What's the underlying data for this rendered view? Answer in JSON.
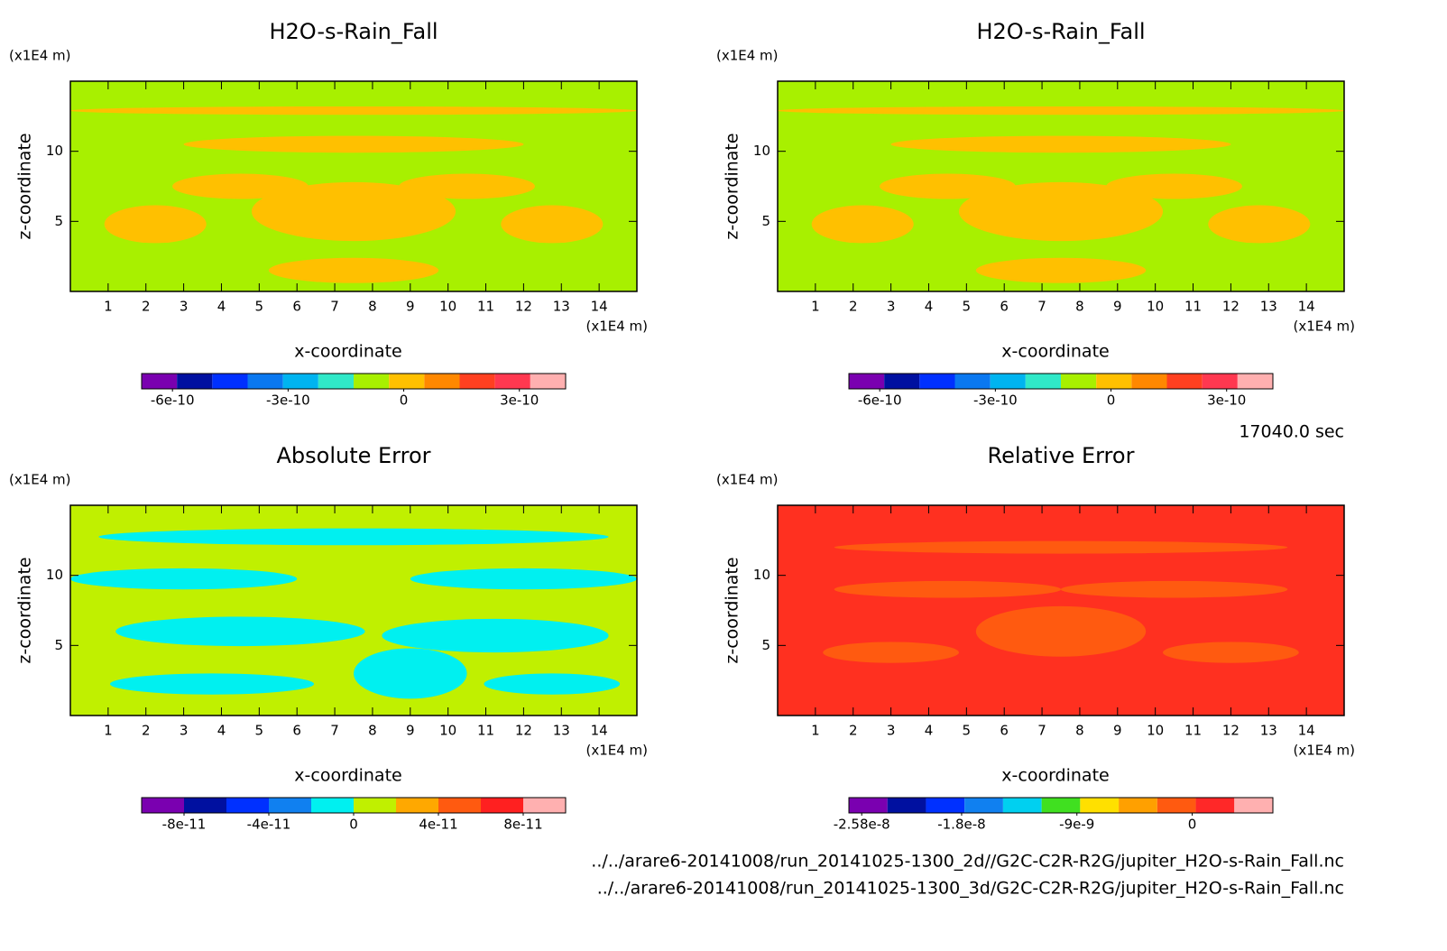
{
  "panels": [
    {
      "title": "H2O-s-Rain_Fall",
      "z_unit": "(x1E4 m)",
      "x_unit": "(x1E4 m)",
      "x_label": "x-coordinate",
      "y_label": "z-coordinate",
      "xlim": [
        0,
        15
      ],
      "ylim": [
        0,
        15
      ],
      "xticks": [
        1,
        2,
        3,
        4,
        5,
        6,
        7,
        8,
        9,
        10,
        11,
        12,
        13,
        14
      ],
      "yticks": [
        5,
        10
      ],
      "field_color": "#a8f000",
      "patch_color": "#ffc000",
      "colorbar": {
        "clim": [
          -6.8e-10,
          4.2e-10
        ],
        "ticks": [
          -6e-10,
          -3e-10,
          0,
          3e-10
        ],
        "colors": [
          "#7a00b0",
          "#0010a0",
          "#0030ff",
          "#0a78f0",
          "#00b4f0",
          "#30e8c8",
          "#a8f000",
          "#ffc000",
          "#ff8800",
          "#ff4020",
          "#ff3850",
          "#ffb0b0"
        ]
      }
    },
    {
      "title": "H2O-s-Rain_Fall",
      "z_unit": "(x1E4 m)",
      "x_unit": "(x1E4 m)",
      "x_label": "x-coordinate",
      "y_label": "z-coordinate",
      "xlim": [
        0,
        15
      ],
      "ylim": [
        0,
        15
      ],
      "xticks": [
        1,
        2,
        3,
        4,
        5,
        6,
        7,
        8,
        9,
        10,
        11,
        12,
        13,
        14
      ],
      "yticks": [
        5,
        10
      ],
      "field_color": "#a8f000",
      "patch_color": "#ffc000",
      "colorbar": {
        "clim": [
          -6.8e-10,
          4.2e-10
        ],
        "ticks": [
          -6e-10,
          -3e-10,
          0,
          3e-10
        ],
        "colors": [
          "#7a00b0",
          "#0010a0",
          "#0030ff",
          "#0a78f0",
          "#00b4f0",
          "#30e8c8",
          "#a8f000",
          "#ffc000",
          "#ff8800",
          "#ff4020",
          "#ff3850",
          "#ffb0b0"
        ]
      }
    },
    {
      "title": "Absolute Error",
      "z_unit": "(x1E4 m)",
      "x_unit": "(x1E4 m)",
      "x_label": "x-coordinate",
      "y_label": "z-coordinate",
      "xlim": [
        0,
        15
      ],
      "ylim": [
        0,
        15
      ],
      "xticks": [
        1,
        2,
        3,
        4,
        5,
        6,
        7,
        8,
        9,
        10,
        11,
        12,
        13,
        14
      ],
      "yticks": [
        5,
        10
      ],
      "field_color": "#c0f000",
      "patch_color": "#00f0f0",
      "colorbar": {
        "clim": [
          -1e-10,
          1e-10
        ],
        "ticks": [
          -8e-11,
          -4e-11,
          0,
          4e-11,
          8e-11
        ],
        "colors": [
          "#7a00b0",
          "#0010a0",
          "#0030ff",
          "#1080f0",
          "#00f0f0",
          "#c0f000",
          "#ffa800",
          "#ff5a10",
          "#ff2020",
          "#ffb0b0"
        ]
      }
    },
    {
      "title": "Relative Error",
      "z_unit": "(x1E4 m)",
      "x_unit": "(x1E4 m)",
      "x_label": "x-coordinate",
      "y_label": "z-coordinate",
      "xlim": [
        0,
        15
      ],
      "ylim": [
        0,
        15
      ],
      "xticks": [
        1,
        2,
        3,
        4,
        5,
        6,
        7,
        8,
        9,
        10,
        11,
        12,
        13,
        14
      ],
      "yticks": [
        5,
        10
      ],
      "field_color": "#ff3020",
      "patch_color": "#ff5a10",
      "colorbar": {
        "clim": [
          -2.68e-08,
          6.3e-09
        ],
        "ticks": [
          -2.58e-08,
          -1.8e-08,
          -9e-09,
          0
        ],
        "colors": [
          "#7a00b0",
          "#0010a0",
          "#0030ff",
          "#1080f0",
          "#00d0f0",
          "#40e020",
          "#ffe000",
          "#ffa000",
          "#ff5a10",
          "#ff2828",
          "#ffb0b0"
        ]
      }
    }
  ],
  "time": "17040.0 sec",
  "files": [
    "../../arare6-20141008/run_20141025-1300_2d//G2C-C2R-R2G/jupiter_H2O-s-Rain_Fall.nc",
    "../../arare6-20141008/run_20141025-1300_3d/G2C-C2R-R2G/jupiter_H2O-s-Rain_Fall.nc"
  ]
}
